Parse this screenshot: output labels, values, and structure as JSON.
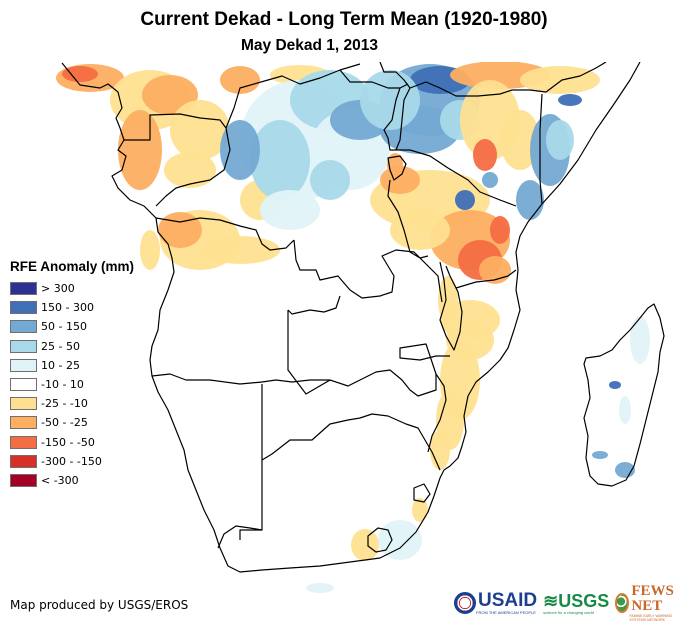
{
  "header": {
    "title": "Current Dekad - Long Term Mean (1920-1980)",
    "subtitle": "May Dekad 1, 2013"
  },
  "legend": {
    "title": "RFE Anomaly (mm)",
    "classes": [
      {
        "label": "> 300",
        "color": "#2e3192"
      },
      {
        "label": "150 - 300",
        "color": "#3f6fb6"
      },
      {
        "label": "50 - 150",
        "color": "#74a9d3"
      },
      {
        "label": "25 - 50",
        "color": "#a8d9ea"
      },
      {
        "label": "10 - 25",
        "color": "#e0f3f8"
      },
      {
        "label": "-10 - 10",
        "color": "#ffffff"
      },
      {
        "label": "-25 - -10",
        "color": "#fee090"
      },
      {
        "label": "-50 - -25",
        "color": "#fdae61"
      },
      {
        "label": "-150 - -50",
        "color": "#f46d43"
      },
      {
        "label": "-300 - -150",
        "color": "#d73027"
      },
      {
        "label": "< -300",
        "color": "#a50026"
      }
    ]
  },
  "map": {
    "region": "Central, Eastern and Southern Africa",
    "variable": "RFE Anomaly (mm)",
    "border_color": "#000000"
  },
  "footer": {
    "credit": "Map produced by USGS/EROS",
    "logos": [
      {
        "name": "USAID",
        "text": "USAID",
        "tagline": "FROM THE AMERICAN PEOPLE"
      },
      {
        "name": "USGS",
        "text": "≋USGS",
        "tagline": "science for a changing world"
      },
      {
        "name": "FEWS NET",
        "text": "FEWS NET",
        "tagline": "FAMINE EARLY WARNING SYSTEMS NETWORK"
      }
    ]
  }
}
